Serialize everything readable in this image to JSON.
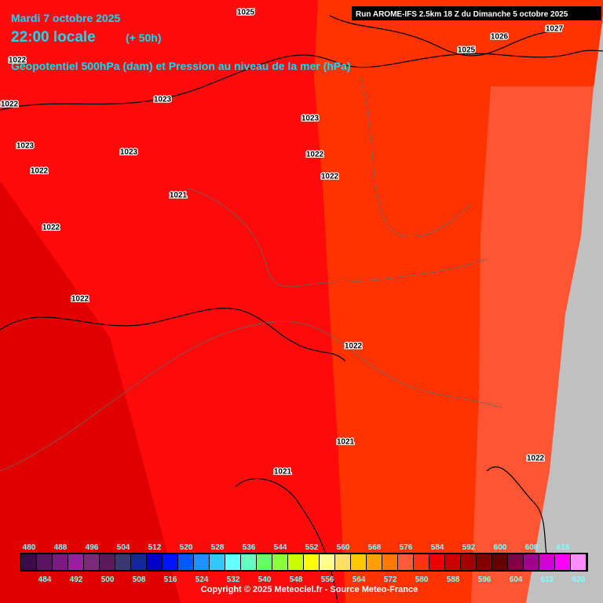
{
  "header": {
    "date": "Mardi 7 octobre 2025",
    "time": "22:00 locale",
    "lead": "(+ 50h)",
    "field": "Geopotentiel 500hPa (dam) et Pression au niveau de la mer (hPa)",
    "run": "Run AROME-IFS 2.5km 18 Z du Dimanche 5 octobre 2025"
  },
  "isobar_labels": [
    "1025",
    "1022",
    "1022",
    "1023",
    "1023",
    "1023",
    "1023",
    "1022",
    "1022",
    "1022",
    "1021",
    "1022",
    "1022",
    "1022",
    "1021",
    "1021",
    "1022",
    "1025",
    "1027",
    "1026"
  ],
  "legend": {
    "values": [
      480,
      484,
      488,
      492,
      496,
      500,
      504,
      508,
      512,
      516,
      520,
      524,
      528,
      532,
      536,
      540,
      544,
      548,
      552,
      556,
      560,
      564,
      568,
      572,
      576,
      580,
      584,
      588,
      592,
      596,
      600,
      604,
      608,
      612,
      616,
      620
    ],
    "colors": [
      "#3c0a46",
      "#5a1462",
      "#7a1a7e",
      "#9a1ea0",
      "#7a2a7a",
      "#5a1a5a",
      "#38386e",
      "#14289a",
      "#0000c8",
      "#0014ff",
      "#0058ff",
      "#1e90ff",
      "#30c8ff",
      "#64ffff",
      "#64ffc0",
      "#64ff64",
      "#8cff3c",
      "#c8ff00",
      "#ffff00",
      "#ffff8c",
      "#ffe064",
      "#ffc800",
      "#ffa000",
      "#ff7800",
      "#ff5a3a",
      "#ff3214",
      "#ee0000",
      "#cc0000",
      "#a00000",
      "#820000",
      "#640000",
      "#820046",
      "#a0008c",
      "#d200d2",
      "#ff00ff",
      "#ff8cff"
    ]
  },
  "footer": {
    "copyright": "Copyright © 2025 Meteociel.fr - Source Meteo-France"
  }
}
